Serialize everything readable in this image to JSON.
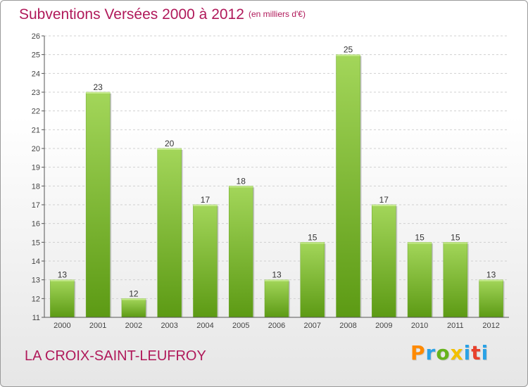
{
  "header": {
    "title": "Subventions Versées 2000 à 2012",
    "unit_note": "(en milliers d'€)"
  },
  "footer": {
    "commune": "LA CROIX-SAINT-LEUFROY",
    "brand": "Proxiti"
  },
  "colors": {
    "bar_light": "#a3d65a",
    "bar_dark": "#5c9a14",
    "title": "#b0195a",
    "grid": "#d0d0d0"
  },
  "chart_data": {
    "type": "bar",
    "categories": [
      "2000",
      "2001",
      "2002",
      "2003",
      "2004",
      "2005",
      "2006",
      "2007",
      "2008",
      "2009",
      "2010",
      "2011",
      "2012"
    ],
    "values": [
      13,
      23,
      12,
      20,
      17,
      18,
      13,
      15,
      25,
      17,
      15,
      15,
      13
    ],
    "ylim": [
      11,
      26
    ],
    "yticks": [
      11,
      12,
      13,
      14,
      15,
      16,
      17,
      18,
      19,
      20,
      21,
      22,
      23,
      24,
      25,
      26
    ],
    "grid": true,
    "data_labels": true
  }
}
